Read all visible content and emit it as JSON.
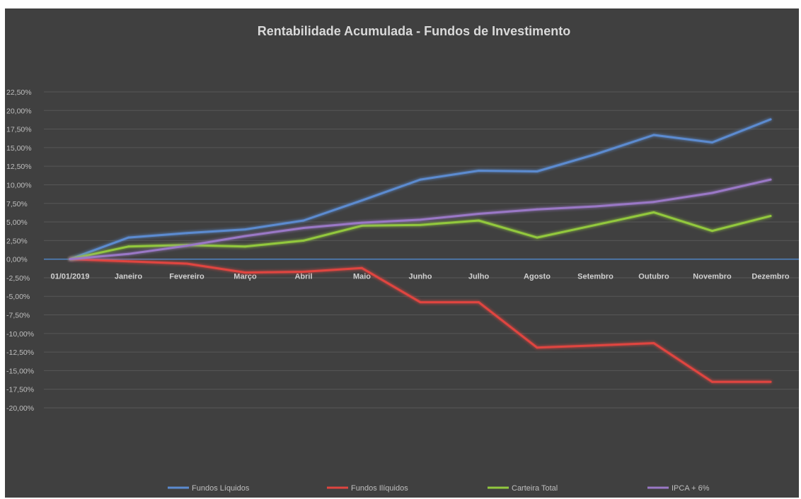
{
  "chart_data": {
    "type": "line",
    "title": "Rentabilidade Acumulada - Fundos de Investimento",
    "xlabel": "",
    "ylabel": "",
    "categories": [
      "01/01/2019",
      "Janeiro",
      "Fevereiro",
      "Março",
      "Abril",
      "Maio",
      "Junho",
      "Julho",
      "Agosto",
      "Setembro",
      "Outubro",
      "Novembro",
      "Dezembro"
    ],
    "ylim": [
      -20,
      22.5
    ],
    "ytick_step": 2.5,
    "ytick_labels": [
      "22,50%",
      "20,00%",
      "17,50%",
      "15,00%",
      "12,50%",
      "10,00%",
      "7,50%",
      "5,00%",
      "2,50%",
      "0,00%",
      "-2,50%",
      "-5,00%",
      "-7,50%",
      "-10,00%",
      "-12,50%",
      "-15,00%",
      "-17,50%",
      "-20,00%"
    ],
    "grid": true,
    "legend_position": "bottom",
    "zero_line_color": "#4f81bd",
    "series": [
      {
        "name": "Fundos Líquidos",
        "color": "#5b8bd0",
        "values": [
          0,
          2.9,
          3.5,
          4.0,
          5.2,
          7.9,
          10.7,
          11.9,
          11.8,
          14.1,
          16.7,
          15.7,
          18.8
        ]
      },
      {
        "name": "Fundos Ilíquidos",
        "color": "#e0453f",
        "values": [
          0,
          -0.3,
          -0.6,
          -1.8,
          -1.7,
          -1.2,
          -5.8,
          -5.8,
          -11.9,
          -11.6,
          -11.3,
          -16.5,
          -16.5
        ]
      },
      {
        "name": "Carteira Total",
        "color": "#92c83e",
        "values": [
          0,
          1.7,
          1.9,
          1.7,
          2.5,
          4.5,
          4.6,
          5.2,
          2.9,
          4.6,
          6.3,
          3.8,
          5.8
        ]
      },
      {
        "name": "IPCA + 6%",
        "color": "#9a78c6",
        "values": [
          0,
          0.7,
          1.8,
          3.1,
          4.2,
          4.9,
          5.3,
          6.1,
          6.7,
          7.1,
          7.7,
          8.9,
          10.7
        ]
      }
    ]
  }
}
